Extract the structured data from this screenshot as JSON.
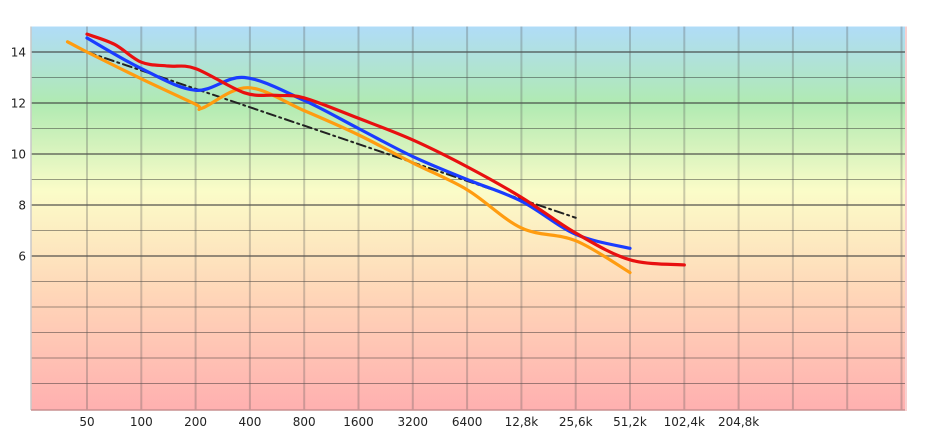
{
  "chart_data": {
    "type": "line",
    "title": "",
    "xlabel": "",
    "ylabel": "",
    "xscale": "log2",
    "xlim": [
      50,
      1638400
    ],
    "ylim": [
      0,
      15
    ],
    "grid": true,
    "x_ticks": [
      50,
      100,
      200,
      400,
      800,
      1600,
      3200,
      6400,
      12800,
      25600,
      51200,
      102400,
      204800
    ],
    "x_tick_labels": [
      "50",
      "100",
      "200",
      "400",
      "800",
      "1600",
      "3200",
      "6400",
      "12,8k",
      "25,6k",
      "51,2k",
      "102,4k",
      "204,8k"
    ],
    "y_ticks": [
      6,
      8,
      10,
      12,
      14
    ],
    "y_tick_labels": [
      "6",
      "8",
      "10",
      "12",
      "14"
    ],
    "series": [
      {
        "name": "red",
        "color": "#e81010",
        "style": "solid",
        "points": [
          [
            50,
            14.7
          ],
          [
            71,
            14.3
          ],
          [
            100,
            13.6
          ],
          [
            141,
            13.45
          ],
          [
            200,
            13.35
          ],
          [
            373,
            12.4
          ],
          [
            560,
            12.3
          ],
          [
            800,
            12.2
          ],
          [
            1600,
            11.4
          ],
          [
            3200,
            10.55
          ],
          [
            6400,
            9.5
          ],
          [
            12800,
            8.3
          ],
          [
            25600,
            6.9
          ],
          [
            51200,
            5.85
          ],
          [
            102400,
            5.65
          ]
        ]
      },
      {
        "name": "blue",
        "color": "#1a3cff",
        "style": "solid",
        "points": [
          [
            50,
            14.55
          ],
          [
            100,
            13.35
          ],
          [
            200,
            12.5
          ],
          [
            373,
            13.0
          ],
          [
            800,
            12.1
          ],
          [
            1600,
            11.0
          ],
          [
            3200,
            9.9
          ],
          [
            6400,
            9.0
          ],
          [
            12800,
            8.15
          ],
          [
            25600,
            6.85
          ],
          [
            51200,
            6.3
          ]
        ]
      },
      {
        "name": "orange",
        "color": "#ff9c10",
        "style": "solid",
        "points": [
          [
            39,
            14.4
          ],
          [
            50,
            14.0
          ],
          [
            100,
            12.95
          ],
          [
            200,
            11.95
          ],
          [
            218,
            11.8
          ],
          [
            390,
            12.6
          ],
          [
            800,
            11.7
          ],
          [
            1600,
            10.75
          ],
          [
            3200,
            9.65
          ],
          [
            6400,
            8.6
          ],
          [
            12800,
            7.1
          ],
          [
            25600,
            6.6
          ],
          [
            51200,
            5.35
          ]
        ]
      },
      {
        "name": "trend",
        "color": "#222222",
        "style": "dash-dot",
        "points": [
          [
            50,
            14.0
          ],
          [
            25600,
            7.5
          ]
        ]
      }
    ]
  }
}
